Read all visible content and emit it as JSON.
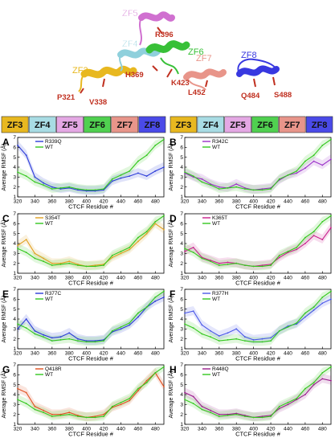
{
  "structure": {
    "domains": [
      {
        "name": "ZF3",
        "color": "#e8b820"
      },
      {
        "name": "ZF4",
        "color": "#8fd0dc"
      },
      {
        "name": "ZF5",
        "color": "#d070d0"
      },
      {
        "name": "ZF6",
        "color": "#38c038"
      },
      {
        "name": "ZF7",
        "color": "#e8958a"
      },
      {
        "name": "ZF8",
        "color": "#3838e0"
      }
    ],
    "residues": [
      "R396",
      "H369",
      "K423",
      "P321",
      "V338",
      "L452",
      "Q484",
      "S488"
    ],
    "residue_color": "#c03020"
  },
  "domain_bar": {
    "segments": [
      {
        "name": "ZF3",
        "color": "#e8b820"
      },
      {
        "name": "ZF4",
        "color": "#a8dce4"
      },
      {
        "name": "ZF5",
        "color": "#e4a8e4"
      },
      {
        "name": "ZF6",
        "color": "#50d050"
      },
      {
        "name": "ZF7",
        "color": "#e8958a"
      },
      {
        "name": "ZF8",
        "color": "#4a4ae8"
      }
    ]
  },
  "axis_labels": {
    "x": "CTCF Residue #",
    "y": "Average RMSF (Å)"
  },
  "chart_data": [
    {
      "panel": "A",
      "type": "line",
      "mutant": "R339Q",
      "mutant_color": "#2a3ad8",
      "wt_color": "#34c81e",
      "xlabel": "CTCF Residue #",
      "ylabel": "Average RMSF (Å)",
      "xlim": [
        320,
        490
      ],
      "ylim": [
        1,
        7
      ],
      "xticks": [
        320,
        340,
        360,
        380,
        400,
        420,
        440,
        460,
        480
      ],
      "yticks": [
        1,
        2,
        3,
        4,
        5,
        6,
        7
      ],
      "x": [
        320,
        330,
        340,
        350,
        360,
        370,
        380,
        390,
        400,
        410,
        420,
        430,
        440,
        450,
        460,
        470,
        480,
        490
      ],
      "series": [
        {
          "name": "R339Q",
          "values": [
            6.2,
            5.2,
            3.0,
            2.4,
            2.0,
            1.8,
            1.9,
            1.7,
            1.6,
            1.6,
            1.7,
            2.6,
            2.9,
            3.1,
            3.4,
            3.1,
            3.6,
            4.0
          ]
        },
        {
          "name": "WT",
          "values": [
            3.5,
            3.1,
            2.5,
            2.2,
            1.8,
            1.9,
            2.0,
            1.8,
            1.7,
            1.7,
            1.8,
            2.8,
            3.2,
            3.6,
            4.6,
            5.2,
            6.2,
            6.8
          ]
        }
      ]
    },
    {
      "panel": "B",
      "type": "line",
      "mutant": "R342C",
      "mutant_color": "#9a30c8",
      "wt_color": "#34c81e",
      "xlabel": "CTCF Residue #",
      "ylabel": "Average RMSF (Å)",
      "xlim": [
        320,
        490
      ],
      "ylim": [
        1,
        7
      ],
      "xticks": [
        320,
        340,
        360,
        380,
        400,
        420,
        440,
        460,
        480
      ],
      "yticks": [
        1,
        2,
        3,
        4,
        5,
        6,
        7
      ],
      "x": [
        320,
        330,
        340,
        350,
        360,
        370,
        380,
        390,
        400,
        410,
        420,
        430,
        440,
        450,
        460,
        470,
        480,
        490
      ],
      "series": [
        {
          "name": "R342C",
          "values": [
            3.4,
            3.0,
            2.8,
            2.3,
            2.0,
            1.9,
            2.3,
            1.9,
            1.7,
            1.8,
            1.9,
            2.7,
            3.2,
            3.4,
            3.9,
            4.6,
            4.2,
            4.8
          ]
        },
        {
          "name": "WT",
          "values": [
            3.5,
            3.1,
            2.5,
            2.2,
            1.8,
            1.9,
            2.0,
            1.8,
            1.7,
            1.7,
            1.8,
            2.8,
            3.2,
            3.6,
            4.6,
            5.2,
            6.2,
            6.8
          ]
        }
      ]
    },
    {
      "panel": "C",
      "type": "line",
      "mutant": "S354T",
      "mutant_color": "#e0a020",
      "wt_color": "#34c81e",
      "xlabel": "CTCF Residue #",
      "ylabel": "Average RMSF (Å)",
      "xlim": [
        320,
        490
      ],
      "ylim": [
        1,
        7
      ],
      "xticks": [
        320,
        340,
        360,
        380,
        400,
        420,
        440,
        460,
        480
      ],
      "yticks": [
        1,
        2,
        3,
        4,
        5,
        6,
        7
      ],
      "x": [
        320,
        330,
        340,
        350,
        360,
        370,
        380,
        390,
        400,
        410,
        420,
        430,
        440,
        450,
        460,
        470,
        480,
        490
      ],
      "series": [
        {
          "name": "S354T",
          "values": [
            3.8,
            4.4,
            3.0,
            2.5,
            2.0,
            2.0,
            2.2,
            1.9,
            1.7,
            1.8,
            1.9,
            2.6,
            3.0,
            3.4,
            4.2,
            5.0,
            6.0,
            5.4
          ]
        },
        {
          "name": "WT",
          "values": [
            3.5,
            3.1,
            2.5,
            2.2,
            1.8,
            1.9,
            2.0,
            1.8,
            1.7,
            1.7,
            1.8,
            2.8,
            3.2,
            3.6,
            4.6,
            5.2,
            6.2,
            6.8
          ]
        }
      ]
    },
    {
      "panel": "D",
      "type": "line",
      "mutant": "K365T",
      "mutant_color": "#c81e8c",
      "wt_color": "#34c81e",
      "xlabel": "CTCF Residue #",
      "ylabel": "Average RMSF (Å)",
      "xlim": [
        320,
        490
      ],
      "ylim": [
        1,
        7
      ],
      "xticks": [
        320,
        340,
        360,
        380,
        400,
        420,
        440,
        460,
        480
      ],
      "yticks": [
        1,
        2,
        3,
        4,
        5,
        6,
        7
      ],
      "x": [
        320,
        330,
        340,
        350,
        360,
        370,
        380,
        390,
        400,
        410,
        420,
        430,
        440,
        450,
        460,
        470,
        480,
        490
      ],
      "series": [
        {
          "name": "K365T",
          "values": [
            3.2,
            3.6,
            2.6,
            2.3,
            2.0,
            2.1,
            2.0,
            1.8,
            1.7,
            1.8,
            1.9,
            2.6,
            3.1,
            3.4,
            4.0,
            4.8,
            4.4,
            5.6
          ]
        },
        {
          "name": "WT",
          "values": [
            3.5,
            3.1,
            2.5,
            2.2,
            1.8,
            1.9,
            2.0,
            1.8,
            1.7,
            1.7,
            1.8,
            2.8,
            3.2,
            3.6,
            4.6,
            5.2,
            6.2,
            6.8
          ]
        }
      ]
    },
    {
      "panel": "E",
      "type": "line",
      "mutant": "R377C",
      "mutant_color": "#2a3ad8",
      "wt_color": "#34c81e",
      "xlabel": "CTCF Residue #",
      "ylabel": "Average RMSF (Å)",
      "xlim": [
        320,
        490
      ],
      "ylim": [
        1,
        7
      ],
      "xticks": [
        320,
        340,
        360,
        380,
        400,
        420,
        440,
        460,
        480
      ],
      "yticks": [
        1,
        2,
        3,
        4,
        5,
        6,
        7
      ],
      "x": [
        320,
        330,
        340,
        350,
        360,
        370,
        380,
        390,
        400,
        410,
        420,
        430,
        440,
        450,
        460,
        470,
        480,
        490
      ],
      "series": [
        {
          "name": "R377C",
          "values": [
            3.0,
            4.0,
            2.8,
            2.4,
            2.1,
            2.2,
            2.6,
            2.0,
            1.8,
            1.8,
            1.9,
            2.7,
            3.0,
            3.4,
            4.2,
            5.2,
            5.8,
            6.2
          ]
        },
        {
          "name": "WT",
          "values": [
            3.5,
            3.1,
            2.5,
            2.2,
            1.8,
            1.9,
            2.0,
            1.8,
            1.7,
            1.7,
            1.8,
            2.8,
            3.2,
            3.6,
            4.6,
            5.2,
            6.2,
            6.8
          ]
        }
      ]
    },
    {
      "panel": "F",
      "type": "line",
      "mutant": "R377H",
      "mutant_color": "#4a58e8",
      "wt_color": "#34c81e",
      "xlabel": "CTCF Residue #",
      "ylabel": "Average RMSF (Å)",
      "xlim": [
        320,
        490
      ],
      "ylim": [
        1,
        7
      ],
      "xticks": [
        320,
        340,
        360,
        380,
        400,
        420,
        440,
        460,
        480
      ],
      "yticks": [
        1,
        2,
        3,
        4,
        5,
        6,
        7
      ],
      "x": [
        320,
        330,
        340,
        350,
        360,
        370,
        380,
        390,
        400,
        410,
        420,
        430,
        440,
        450,
        460,
        470,
        480,
        490
      ],
      "series": [
        {
          "name": "R377H",
          "values": [
            4.6,
            4.8,
            3.4,
            2.8,
            2.3,
            2.6,
            3.0,
            2.2,
            1.9,
            2.0,
            2.1,
            2.8,
            3.3,
            3.5,
            4.2,
            4.9,
            5.6,
            6.0
          ]
        },
        {
          "name": "WT",
          "values": [
            3.5,
            3.1,
            2.5,
            2.2,
            1.8,
            1.9,
            2.0,
            1.8,
            1.7,
            1.7,
            1.8,
            2.8,
            3.2,
            3.6,
            4.6,
            5.2,
            6.2,
            6.8
          ]
        }
      ]
    },
    {
      "panel": "G",
      "type": "line",
      "mutant": "Q418R",
      "mutant_color": "#e05020",
      "wt_color": "#34c81e",
      "xlabel": "CTCF Residue #",
      "ylabel": "Average RMSF (Å)",
      "xlim": [
        320,
        490
      ],
      "ylim": [
        1,
        7
      ],
      "xticks": [
        320,
        340,
        360,
        380,
        400,
        420,
        440,
        460,
        480
      ],
      "yticks": [
        1,
        2,
        3,
        4,
        5,
        6,
        7
      ],
      "x": [
        320,
        330,
        340,
        350,
        360,
        370,
        380,
        390,
        400,
        410,
        420,
        430,
        440,
        450,
        460,
        470,
        480,
        490
      ],
      "series": [
        {
          "name": "Q418R",
          "values": [
            4.6,
            4.2,
            2.8,
            2.4,
            2.0,
            2.0,
            2.2,
            1.9,
            1.7,
            1.8,
            2.0,
            2.7,
            3.0,
            3.4,
            4.4,
            5.4,
            6.2,
            4.8
          ]
        },
        {
          "name": "WT",
          "values": [
            3.5,
            3.1,
            2.5,
            2.2,
            1.8,
            1.9,
            2.0,
            1.8,
            1.7,
            1.7,
            1.8,
            2.8,
            3.2,
            3.6,
            4.6,
            5.2,
            6.2,
            6.8
          ]
        }
      ]
    },
    {
      "panel": "H",
      "type": "line",
      "mutant": "R448Q",
      "mutant_color": "#9a1e8c",
      "wt_color": "#34c81e",
      "xlabel": "CTCF Residue #",
      "ylabel": "Average RMSF (Å)",
      "xlim": [
        320,
        490
      ],
      "ylim": [
        1,
        7
      ],
      "xticks": [
        320,
        340,
        360,
        380,
        400,
        420,
        440,
        460,
        480
      ],
      "yticks": [
        1,
        2,
        3,
        4,
        5,
        6,
        7
      ],
      "x": [
        320,
        330,
        340,
        350,
        360,
        370,
        380,
        390,
        400,
        410,
        420,
        430,
        440,
        450,
        460,
        470,
        480,
        490
      ],
      "series": [
        {
          "name": "R448Q",
          "values": [
            4.2,
            3.8,
            2.8,
            2.4,
            2.0,
            2.0,
            2.1,
            1.9,
            1.7,
            1.8,
            1.9,
            2.6,
            3.0,
            3.5,
            4.0,
            5.0,
            5.6,
            5.4
          ]
        },
        {
          "name": "WT",
          "values": [
            3.5,
            3.1,
            2.5,
            2.2,
            1.8,
            1.9,
            2.0,
            1.8,
            1.7,
            1.7,
            1.8,
            2.8,
            3.2,
            3.6,
            4.6,
            5.2,
            6.2,
            6.8
          ]
        }
      ]
    }
  ]
}
